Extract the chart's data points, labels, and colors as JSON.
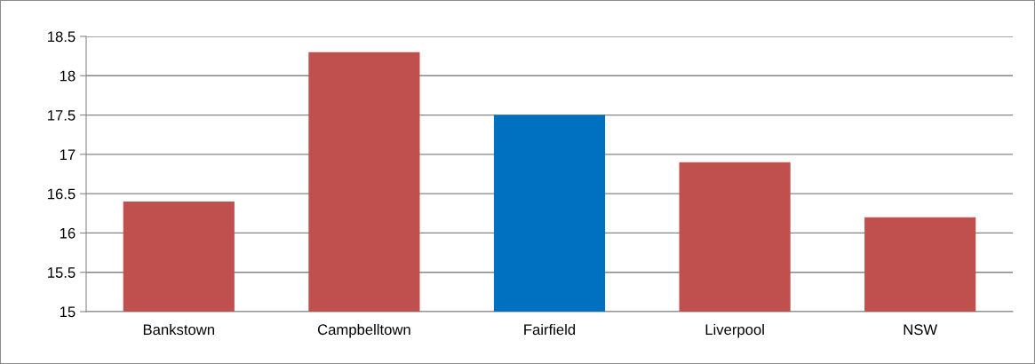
{
  "chart_data": {
    "type": "bar",
    "categories": [
      "Bankstown",
      "Campbelltown",
      "Fairfield",
      "Liverpool",
      "NSW"
    ],
    "values": [
      16.4,
      18.3,
      17.5,
      16.9,
      16.2
    ],
    "colors": [
      "#c0504d",
      "#c0504d",
      "#0070c0",
      "#c0504d",
      "#c0504d"
    ],
    "ylim": [
      15,
      18.5
    ],
    "yticks": [
      15,
      15.5,
      16,
      16.5,
      17,
      17.5,
      18,
      18.5
    ],
    "grid": "y",
    "legend": false
  }
}
